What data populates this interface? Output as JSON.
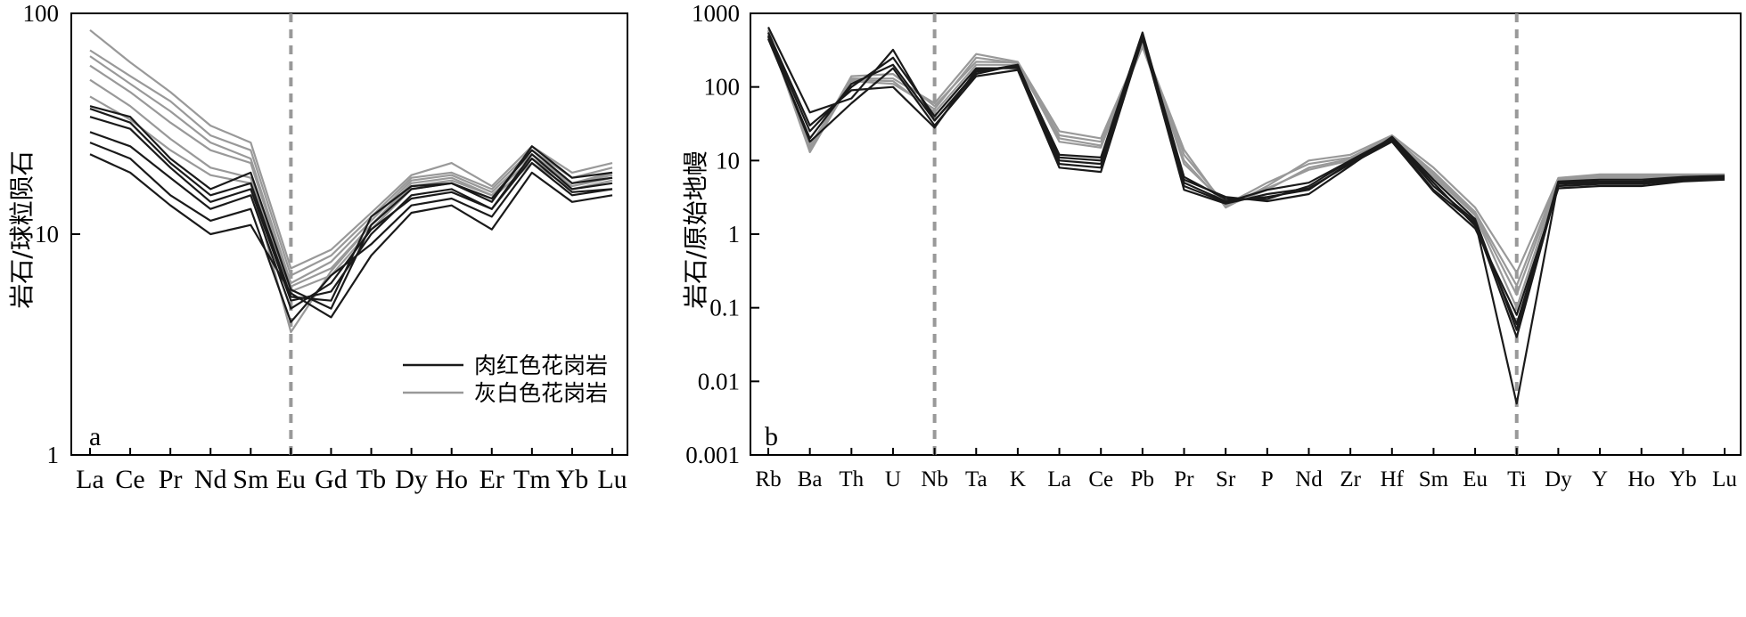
{
  "chart_data": [
    {
      "type": "line",
      "panel_letter": "a",
      "title": "",
      "xlabel": "",
      "ylabel": "岩石/球粒陨石",
      "yscale": "log",
      "ylim": [
        1,
        100
      ],
      "yticks": [
        "1",
        "10",
        "100"
      ],
      "categories": [
        "La",
        "Ce",
        "Pr",
        "Nd",
        "Sm",
        "Eu",
        "Gd",
        "Tb",
        "Dy",
        "Ho",
        "Er",
        "Tm",
        "Yb",
        "Lu"
      ],
      "reference_line_category": "Eu",
      "legend": [
        "肉红色花岗岩",
        "灰白色花岗岩"
      ],
      "legend_position": "bottom-right",
      "series": [
        {
          "group": "肉红色花岗岩",
          "color": "#1a1a1a",
          "values": [
            38,
            34,
            22,
            16,
            19,
            5.6,
            4.6,
            11,
            16,
            17,
            14,
            25,
            18,
            19
          ]
        },
        {
          "group": "肉红色花岗岩",
          "color": "#1a1a1a",
          "values": [
            37,
            32,
            21,
            15,
            17,
            5.2,
            5.0,
            12,
            16.5,
            17,
            14.5,
            24,
            17,
            18
          ]
        },
        {
          "group": "肉红色花岗岩",
          "color": "#1a1a1a",
          "values": [
            34,
            30,
            20,
            14,
            16,
            5.0,
            5.5,
            10,
            15,
            16,
            13,
            23,
            16,
            17
          ]
        },
        {
          "group": "肉红色花岗岩",
          "color": "#1a1a1a",
          "values": [
            29,
            25,
            18,
            13,
            15,
            4.6,
            6.0,
            10.5,
            14.5,
            15.5,
            13,
            22,
            15.5,
            16
          ]
        },
        {
          "group": "肉红色花岗岩",
          "color": "#1a1a1a",
          "values": [
            26,
            22,
            15,
            11.5,
            13,
            4.0,
            6.5,
            9,
            13.5,
            14.5,
            12,
            21,
            15,
            16
          ]
        },
        {
          "group": "肉红色花岗岩",
          "color": "#1a1a1a",
          "values": [
            23,
            19,
            13.5,
            10,
            11,
            5.4,
            4.2,
            8,
            12.5,
            13.5,
            10.5,
            19,
            14,
            15
          ]
        },
        {
          "group": "灰白色花岗岩",
          "color": "#999999",
          "values": [
            84,
            60,
            44,
            31,
            26,
            7.0,
            8.5,
            12.5,
            18.5,
            21,
            16.5,
            25,
            19,
            21
          ]
        },
        {
          "group": "灰白色花岗岩",
          "color": "#999999",
          "values": [
            68,
            52,
            40,
            28,
            24,
            6.5,
            8,
            12,
            18,
            19,
            16,
            24,
            18,
            20
          ]
        },
        {
          "group": "灰白色花岗岩",
          "color": "#999999",
          "values": [
            64,
            48,
            36,
            26,
            22,
            6.0,
            7.5,
            11.5,
            17.5,
            18.5,
            15.5,
            23,
            17,
            19
          ]
        },
        {
          "group": "灰白色花岗岩",
          "color": "#999999",
          "values": [
            58,
            44,
            32,
            24,
            21,
            5.8,
            7,
            11,
            17,
            18,
            15,
            22,
            16.5,
            18
          ]
        },
        {
          "group": "灰白色花岗岩",
          "color": "#999999",
          "values": [
            50,
            38,
            27,
            20,
            18,
            5.5,
            6.5,
            10.5,
            16,
            17,
            14.5,
            21,
            16,
            17.5
          ]
        },
        {
          "group": "灰白色花岗岩",
          "color": "#999999",
          "values": [
            42,
            33,
            24,
            18.5,
            17,
            3.6,
            6.8,
            11,
            16.5,
            17.5,
            15,
            22,
            17,
            18.5
          ]
        }
      ]
    },
    {
      "type": "line",
      "panel_letter": "b",
      "title": "",
      "xlabel": "",
      "ylabel": "岩石/原始地幔",
      "yscale": "log",
      "ylim": [
        0.001,
        1000
      ],
      "yticks": [
        "0.001",
        "0.01",
        "0.1",
        "1",
        "10",
        "100",
        "1000"
      ],
      "categories": [
        "Rb",
        "Ba",
        "Th",
        "U",
        "Nb",
        "Ta",
        "K",
        "La",
        "Ce",
        "Pb",
        "Pr",
        "Sr",
        "P",
        "Nd",
        "Zr",
        "Hf",
        "Sm",
        "Eu",
        "Ti",
        "Dy",
        "Y",
        "Ho",
        "Yb",
        "Lu"
      ],
      "reference_line_categories": [
        "Nb",
        "Ti"
      ],
      "series": [
        {
          "group": "肉红色花岗岩",
          "color": "#1a1a1a",
          "values": [
            650,
            45,
            70,
            320,
            35,
            150,
            200,
            11,
            10,
            520,
            6,
            3.0,
            3.0,
            4.5,
            10,
            20,
            4.5,
            1.5,
            0.005,
            5.0,
            5.2,
            5.2,
            5.8,
            6.0
          ]
        },
        {
          "group": "肉红色花岗岩",
          "color": "#1a1a1a",
          "values": [
            500,
            25,
            100,
            250,
            40,
            180,
            180,
            10,
            9,
            480,
            5,
            2.8,
            3.2,
            4.0,
            9.5,
            19,
            4.0,
            1.4,
            0.04,
            4.8,
            5.0,
            5.0,
            5.5,
            5.8
          ]
        },
        {
          "group": "肉红色花岗岩",
          "color": "#1a1a1a",
          "values": [
            450,
            20,
            110,
            200,
            35,
            160,
            200,
            9,
            8,
            500,
            4.5,
            2.7,
            4.0,
            5.0,
            10,
            20,
            5.0,
            1.3,
            0.06,
            4.5,
            4.8,
            4.8,
            5.4,
            5.6
          ]
        },
        {
          "group": "肉红色花岗岩",
          "color": "#1a1a1a",
          "values": [
            480,
            18,
            60,
            180,
            30,
            140,
            170,
            8,
            7,
            450,
            4.0,
            2.6,
            3.5,
            4.2,
            9,
            18,
            3.8,
            1.2,
            0.08,
            4.2,
            4.5,
            4.5,
            5.2,
            5.5
          ]
        },
        {
          "group": "肉红色花岗岩",
          "color": "#1a1a1a",
          "values": [
            550,
            30,
            90,
            100,
            28,
            170,
            190,
            12,
            11,
            550,
            5.5,
            3.2,
            2.8,
            3.5,
            8.5,
            21,
            5.5,
            1.6,
            0.05,
            5.2,
            5.5,
            5.5,
            6.0,
            6.2
          ]
        },
        {
          "group": "灰白色花岗岩",
          "color": "#999999",
          "values": [
            600,
            15,
            130,
            130,
            60,
            280,
            220,
            25,
            20,
            400,
            14,
            2.3,
            4.5,
            10,
            12,
            22,
            8.0,
            2.3,
            0.3,
            5.8,
            6.5,
            6.5,
            6.5,
            6.5
          ]
        },
        {
          "group": "灰白色花岗岩",
          "color": "#999999",
          "values": [
            550,
            13,
            120,
            110,
            50,
            250,
            210,
            22,
            18,
            380,
            12,
            2.5,
            5.0,
            9,
            11,
            21,
            7.0,
            2.0,
            0.2,
            5.6,
            6.2,
            6.2,
            6.3,
            6.3
          ]
        },
        {
          "group": "灰白色花岗岩",
          "color": "#999999",
          "values": [
            520,
            16,
            125,
            120,
            45,
            200,
            200,
            20,
            16,
            350,
            10,
            2.4,
            4.0,
            8,
            10.5,
            20,
            6.5,
            1.9,
            0.15,
            5.4,
            6.0,
            6.0,
            6.1,
            6.1
          ]
        },
        {
          "group": "灰白色花岗岩",
          "color": "#999999",
          "values": [
            580,
            14,
            140,
            150,
            55,
            220,
            215,
            18,
            15,
            420,
            9,
            2.6,
            4.2,
            7.5,
            10,
            19,
            6.0,
            1.8,
            0.1,
            5.2,
            5.8,
            5.8,
            6.0,
            6.0
          ]
        }
      ]
    }
  ]
}
